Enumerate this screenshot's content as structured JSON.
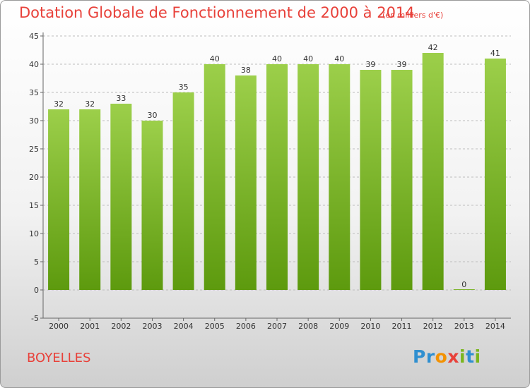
{
  "title": "Dotation Globale de Fonctionnement de 2000 à 2014",
  "unit_note": "(en milliers d'€)",
  "commune": "BOYELLES",
  "logo": {
    "letters": [
      "P",
      "r",
      "o",
      "x",
      "i",
      "t",
      "i"
    ],
    "colors": [
      "#2f8fd0",
      "#2f8fd0",
      "#f39200",
      "#e8413a",
      "#7ab51d",
      "#2f8fd0",
      "#7ab51d"
    ]
  },
  "colors": {
    "bar_top": "#9ccf4a",
    "bar_bottom": "#5d9a0e",
    "accent_text": "#e8413a"
  },
  "chart_data": {
    "type": "bar",
    "title": "Dotation Globale de Fonctionnement de 2000 à 2014",
    "subtitle": "(en milliers d'€)",
    "categories": [
      "2000",
      "2001",
      "2002",
      "2003",
      "2004",
      "2005",
      "2006",
      "2007",
      "2008",
      "2009",
      "2010",
      "2011",
      "2012",
      "2013",
      "2014"
    ],
    "values": [
      32,
      32,
      33,
      30,
      35,
      40,
      38,
      40,
      40,
      40,
      39,
      39,
      42,
      0,
      41
    ],
    "ylim": [
      -5,
      45
    ],
    "yticks": [
      -5,
      0,
      5,
      10,
      15,
      20,
      25,
      30,
      35,
      40,
      45
    ],
    "grid": "horizontal dashed",
    "legend": "none"
  }
}
